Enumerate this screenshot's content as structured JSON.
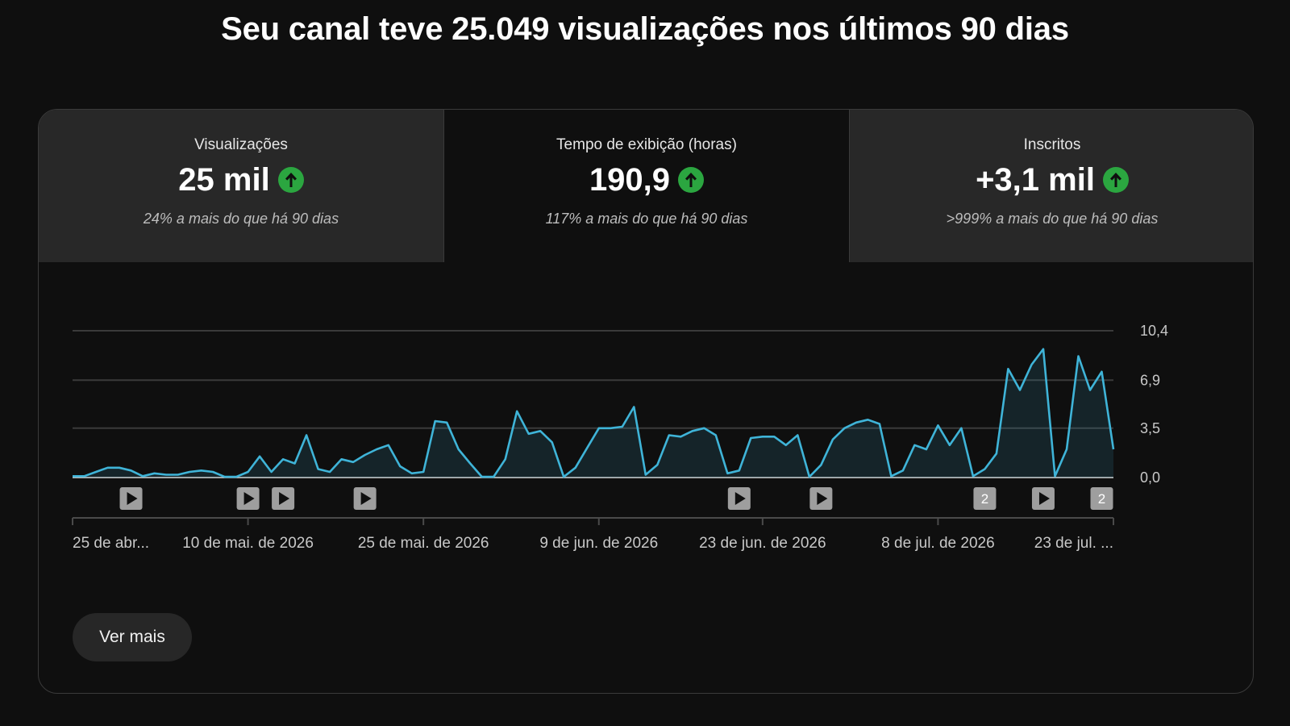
{
  "headline": "Seu canal teve 25.049 visualizações nos últimos 90 dias",
  "colors": {
    "accent": "#3ea6ff",
    "line": "#3fb4d8",
    "up_badge": "#2ba640"
  },
  "tabs": [
    {
      "label": "Visualizações",
      "value": "25 mil",
      "icon": "arrow-up-icon",
      "compare": "24% a mais do que há 90 dias",
      "selected": false
    },
    {
      "label": "Tempo de exibição (horas)",
      "value": "190,9",
      "icon": "arrow-up-icon",
      "compare": "117% a mais do que há 90 dias",
      "selected": true
    },
    {
      "label": "Inscritos",
      "value": "+3,1 mil",
      "icon": "arrow-up-icon",
      "compare": ">999% a mais do que há 90 dias",
      "selected": false
    }
  ],
  "chart_data": {
    "type": "area",
    "ylim": [
      0,
      10.4
    ],
    "y_ticks": [
      "10,4",
      "6,9",
      "3,5",
      "0,0"
    ],
    "y_tick_values": [
      10.4,
      6.9,
      3.5,
      0
    ],
    "x_tick_labels": [
      "25 de abr...",
      "10 de mai. de 2026",
      "25 de mai. de 2026",
      "9 de jun. de 2026",
      "23 de jun. de 2026",
      "8 de jul. de 2026",
      "23 de jul. ..."
    ],
    "x_tick_days": [
      0,
      15,
      30,
      45,
      59,
      74,
      89
    ],
    "values": [
      0.1,
      0.1,
      0.4,
      0.7,
      0.7,
      0.5,
      0.1,
      0.3,
      0.2,
      0.2,
      0.4,
      0.5,
      0.4,
      0.05,
      0.05,
      0.4,
      1.5,
      0.4,
      1.3,
      1.0,
      3.0,
      0.6,
      0.4,
      1.3,
      1.1,
      1.6,
      2.0,
      2.3,
      0.8,
      0.3,
      0.4,
      4.0,
      3.9,
      2.0,
      1.0,
      0.05,
      0.05,
      1.3,
      4.7,
      3.1,
      3.3,
      2.5,
      0.05,
      0.7,
      2.1,
      3.5,
      3.5,
      3.6,
      5.0,
      0.2,
      0.9,
      3.0,
      2.9,
      3.3,
      3.5,
      3.0,
      0.3,
      0.5,
      2.8,
      2.9,
      2.9,
      2.3,
      3.0,
      0.05,
      0.9,
      2.7,
      3.5,
      3.9,
      4.1,
      3.8,
      0.1,
      0.5,
      2.3,
      2.0,
      3.7,
      2.3,
      3.5,
      0.1,
      0.6,
      1.7,
      7.7,
      6.2,
      8.0,
      9.1,
      0.1,
      2.0,
      8.6,
      6.2,
      7.5,
      2.0
    ],
    "markers": [
      {
        "day": 5,
        "kind": "video",
        "icon": "play-icon"
      },
      {
        "day": 15,
        "kind": "video",
        "icon": "play-icon"
      },
      {
        "day": 18,
        "kind": "video",
        "icon": "play-icon"
      },
      {
        "day": 25,
        "kind": "video",
        "icon": "play-icon"
      },
      {
        "day": 57,
        "kind": "video",
        "icon": "play-icon"
      },
      {
        "day": 64,
        "kind": "video",
        "icon": "play-icon"
      },
      {
        "day": 78,
        "kind": "count",
        "label": "2"
      },
      {
        "day": 83,
        "kind": "video",
        "icon": "play-icon"
      },
      {
        "day": 88,
        "kind": "count",
        "label": "2"
      }
    ],
    "grid": true
  },
  "actions": {
    "ver_mais": "Ver mais"
  }
}
